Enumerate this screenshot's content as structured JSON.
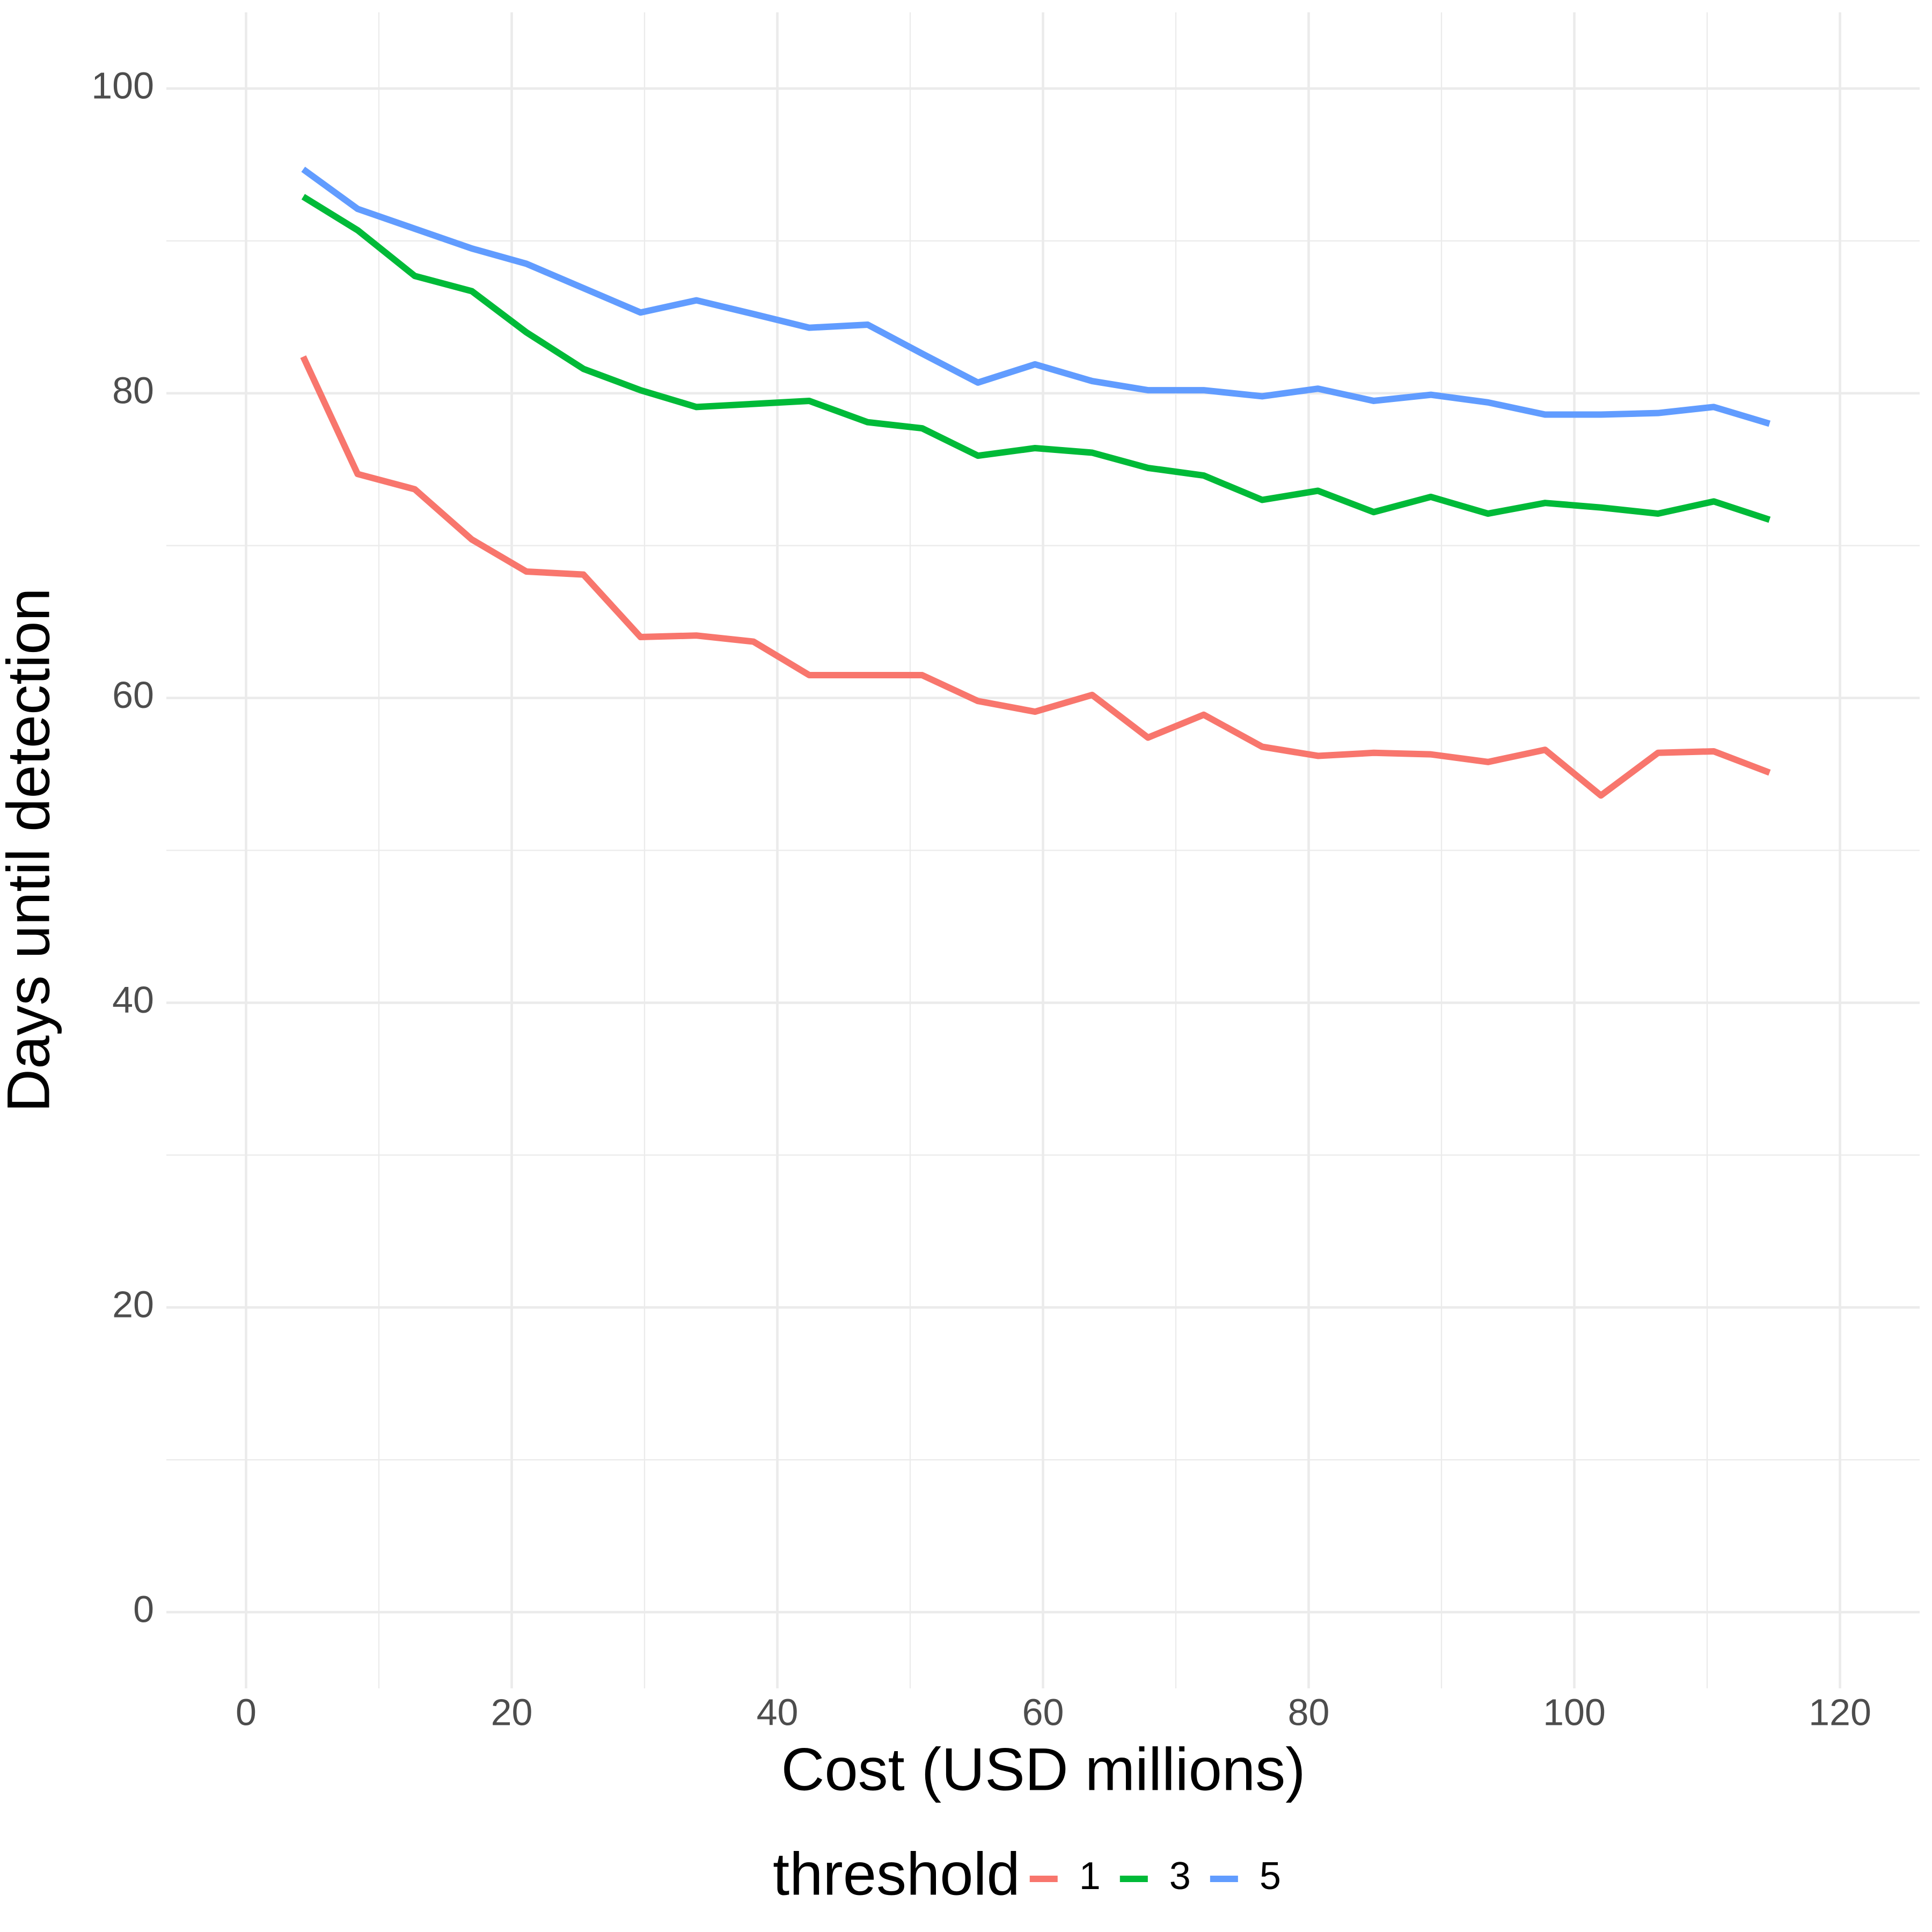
{
  "chart_data": {
    "type": "line",
    "x_label": "Cost (USD millions)",
    "y_label": "Days until detection",
    "legend_title": "threshold",
    "legend_position": "bottom",
    "grid": true,
    "minor_grid": true,
    "xlim": [
      -6,
      126
    ],
    "xticks": [
      0,
      20,
      40,
      60,
      80,
      100,
      120
    ],
    "ylim": [
      -5,
      105
    ],
    "yticks": [
      0,
      20,
      40,
      60,
      80,
      100
    ],
    "x": [
      4.3,
      8.4,
      12.7,
      17.0,
      21.1,
      25.4,
      29.7,
      33.9,
      38.2,
      42.4,
      46.8,
      50.9,
      55.1,
      59.4,
      63.7,
      67.9,
      72.1,
      76.5,
      80.7,
      84.9,
      89.2,
      93.5,
      97.8,
      102.0,
      106.3,
      110.5,
      114.7
    ],
    "series": [
      {
        "name": "1",
        "color": "#F8766D",
        "values": [
          82.4,
          74.7,
          73.7,
          70.4,
          68.3,
          68.1,
          64.0,
          64.1,
          63.7,
          61.5,
          61.5,
          61.5,
          59.8,
          59.1,
          60.2,
          57.4,
          58.9,
          56.8,
          56.2,
          56.4,
          56.3,
          55.8,
          56.6,
          53.6,
          56.4,
          56.5,
          55.1
        ]
      },
      {
        "name": "3",
        "color": "#00BA38",
        "values": [
          92.9,
          90.7,
          87.7,
          86.7,
          84.0,
          81.6,
          80.2,
          79.1,
          79.3,
          79.5,
          78.1,
          77.7,
          75.9,
          76.4,
          76.1,
          75.1,
          74.6,
          73.0,
          73.6,
          72.2,
          73.2,
          72.1,
          72.8,
          72.5,
          72.1,
          72.9,
          71.7
        ]
      },
      {
        "name": "5",
        "color": "#619CFF",
        "values": [
          94.7,
          92.1,
          90.8,
          89.5,
          88.5,
          86.9,
          85.3,
          86.1,
          85.2,
          84.3,
          84.5,
          82.6,
          80.7,
          81.9,
          80.8,
          80.2,
          80.2,
          79.8,
          80.3,
          79.5,
          79.9,
          79.4,
          78.6,
          78.6,
          78.7,
          79.1,
          78.0
        ]
      }
    ]
  }
}
